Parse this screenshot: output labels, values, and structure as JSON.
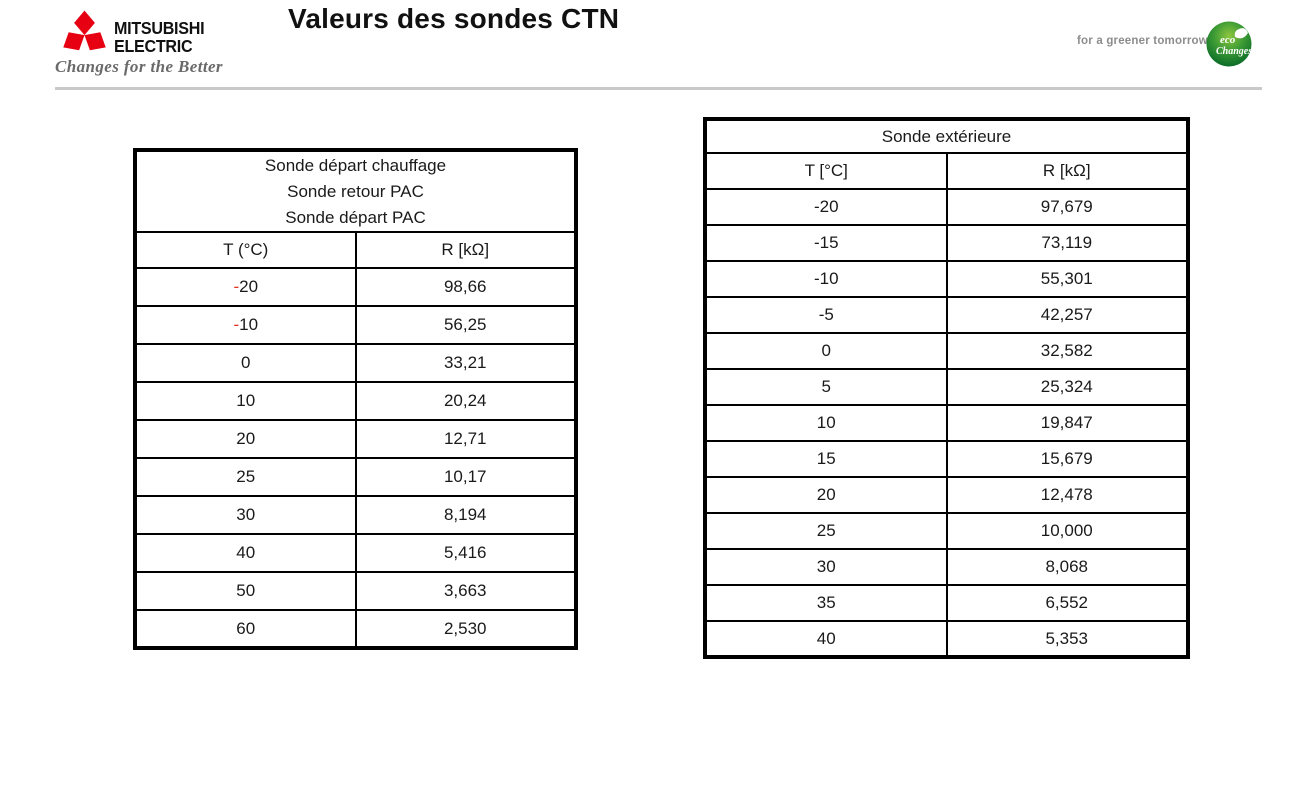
{
  "header": {
    "title": "Valeurs des sondes CTN",
    "logo": {
      "brand_line1": "MITSUBISHI",
      "brand_line2": "ELECTRIC",
      "tagline": "Changes for the Better"
    },
    "right_tagline": "for a greener tomorrow",
    "eco_badge": {
      "line1": "eco",
      "line2": "Changes"
    }
  },
  "colors": {
    "mitsubishi_red": "#e60012",
    "minus_red": "#e0311f",
    "logo_tagline_gray": "#6a6a6a",
    "divider_gray": "#c9c9c9",
    "greener_tagline_gray": "#8d8d8d",
    "eco_green_dark": "#006325",
    "eco_green_mid": "#3d9b35",
    "eco_green_light": "#8dc63f"
  },
  "left_table": {
    "title_lines": [
      "Sonde départ chauffage",
      "Sonde retour PAC",
      "Sonde départ PAC"
    ],
    "col_headers": [
      "T (°C)",
      "R [kΩ]"
    ],
    "red_minus": true,
    "rows": [
      {
        "t": "-20",
        "r": "98,66"
      },
      {
        "t": "-10",
        "r": "56,25"
      },
      {
        "t": "0",
        "r": "33,21"
      },
      {
        "t": "10",
        "r": "20,24"
      },
      {
        "t": "20",
        "r": "12,71"
      },
      {
        "t": "25",
        "r": "10,17"
      },
      {
        "t": "30",
        "r": "8,194"
      },
      {
        "t": "40",
        "r": "5,416"
      },
      {
        "t": "50",
        "r": "3,663"
      },
      {
        "t": "60",
        "r": "2,530"
      }
    ]
  },
  "right_table": {
    "title": "Sonde extérieure",
    "col_headers": [
      "T [°C]",
      "R [kΩ]"
    ],
    "red_minus": false,
    "rows": [
      {
        "t": "-20",
        "r": "97,679"
      },
      {
        "t": "-15",
        "r": "73,119"
      },
      {
        "t": "-10",
        "r": "55,301"
      },
      {
        "t": "-5",
        "r": "42,257"
      },
      {
        "t": "0",
        "r": "32,582"
      },
      {
        "t": "5",
        "r": "25,324"
      },
      {
        "t": "10",
        "r": "19,847"
      },
      {
        "t": "15",
        "r": "15,679"
      },
      {
        "t": "20",
        "r": "12,478"
      },
      {
        "t": "25",
        "r": "10,000"
      },
      {
        "t": "30",
        "r": "8,068"
      },
      {
        "t": "35",
        "r": "6,552"
      },
      {
        "t": "40",
        "r": "5,353"
      }
    ]
  }
}
